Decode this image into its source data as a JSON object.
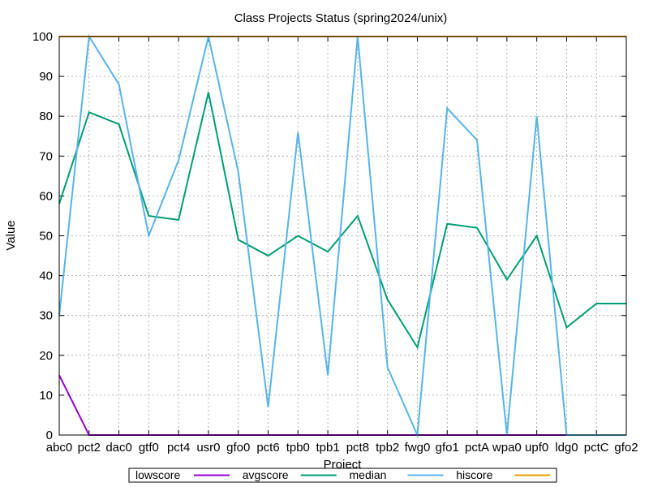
{
  "chart_data": {
    "type": "line",
    "title": "Class Projects Status (spring2024/unix)",
    "xlabel": "Project",
    "ylabel": "Value",
    "ylim": [
      0,
      100
    ],
    "yticks": [
      0,
      10,
      20,
      30,
      40,
      50,
      60,
      70,
      80,
      90,
      100
    ],
    "grid": true,
    "legend_position": "bottom",
    "categories": [
      "abc0",
      "pct2",
      "dac0",
      "gtf0",
      "pct4",
      "usr0",
      "gfo0",
      "pct6",
      "tpb0",
      "tpb1",
      "pct8",
      "tpb2",
      "fwg0",
      "gfo1",
      "pctA",
      "wpa0",
      "upf0",
      "ldg0",
      "pctC",
      "gfo2"
    ],
    "series": [
      {
        "name": "lowscore",
        "color": "#9400d3",
        "values": [
          15,
          0,
          0,
          0,
          0,
          0,
          0,
          0,
          0,
          0,
          0,
          0,
          0,
          0,
          0,
          0,
          0,
          0,
          0,
          0
        ]
      },
      {
        "name": "avgscore",
        "color": "#009e73",
        "values": [
          58,
          81,
          78,
          55,
          54,
          86,
          49,
          45,
          50,
          46,
          55,
          34,
          22,
          53,
          52,
          39,
          50,
          27,
          33,
          33
        ]
      },
      {
        "name": "median",
        "color": "#56b4e9",
        "values": [
          30,
          100,
          88,
          50,
          69,
          100,
          66,
          7,
          76,
          15,
          100,
          17,
          0,
          82,
          74,
          0,
          80,
          0,
          0,
          0
        ]
      },
      {
        "name": "hiscore",
        "color": "#e69f00",
        "values": [
          100,
          100,
          100,
          100,
          100,
          100,
          100,
          100,
          100,
          100,
          100,
          100,
          100,
          100,
          100,
          100,
          100,
          100,
          100,
          100
        ]
      }
    ]
  }
}
